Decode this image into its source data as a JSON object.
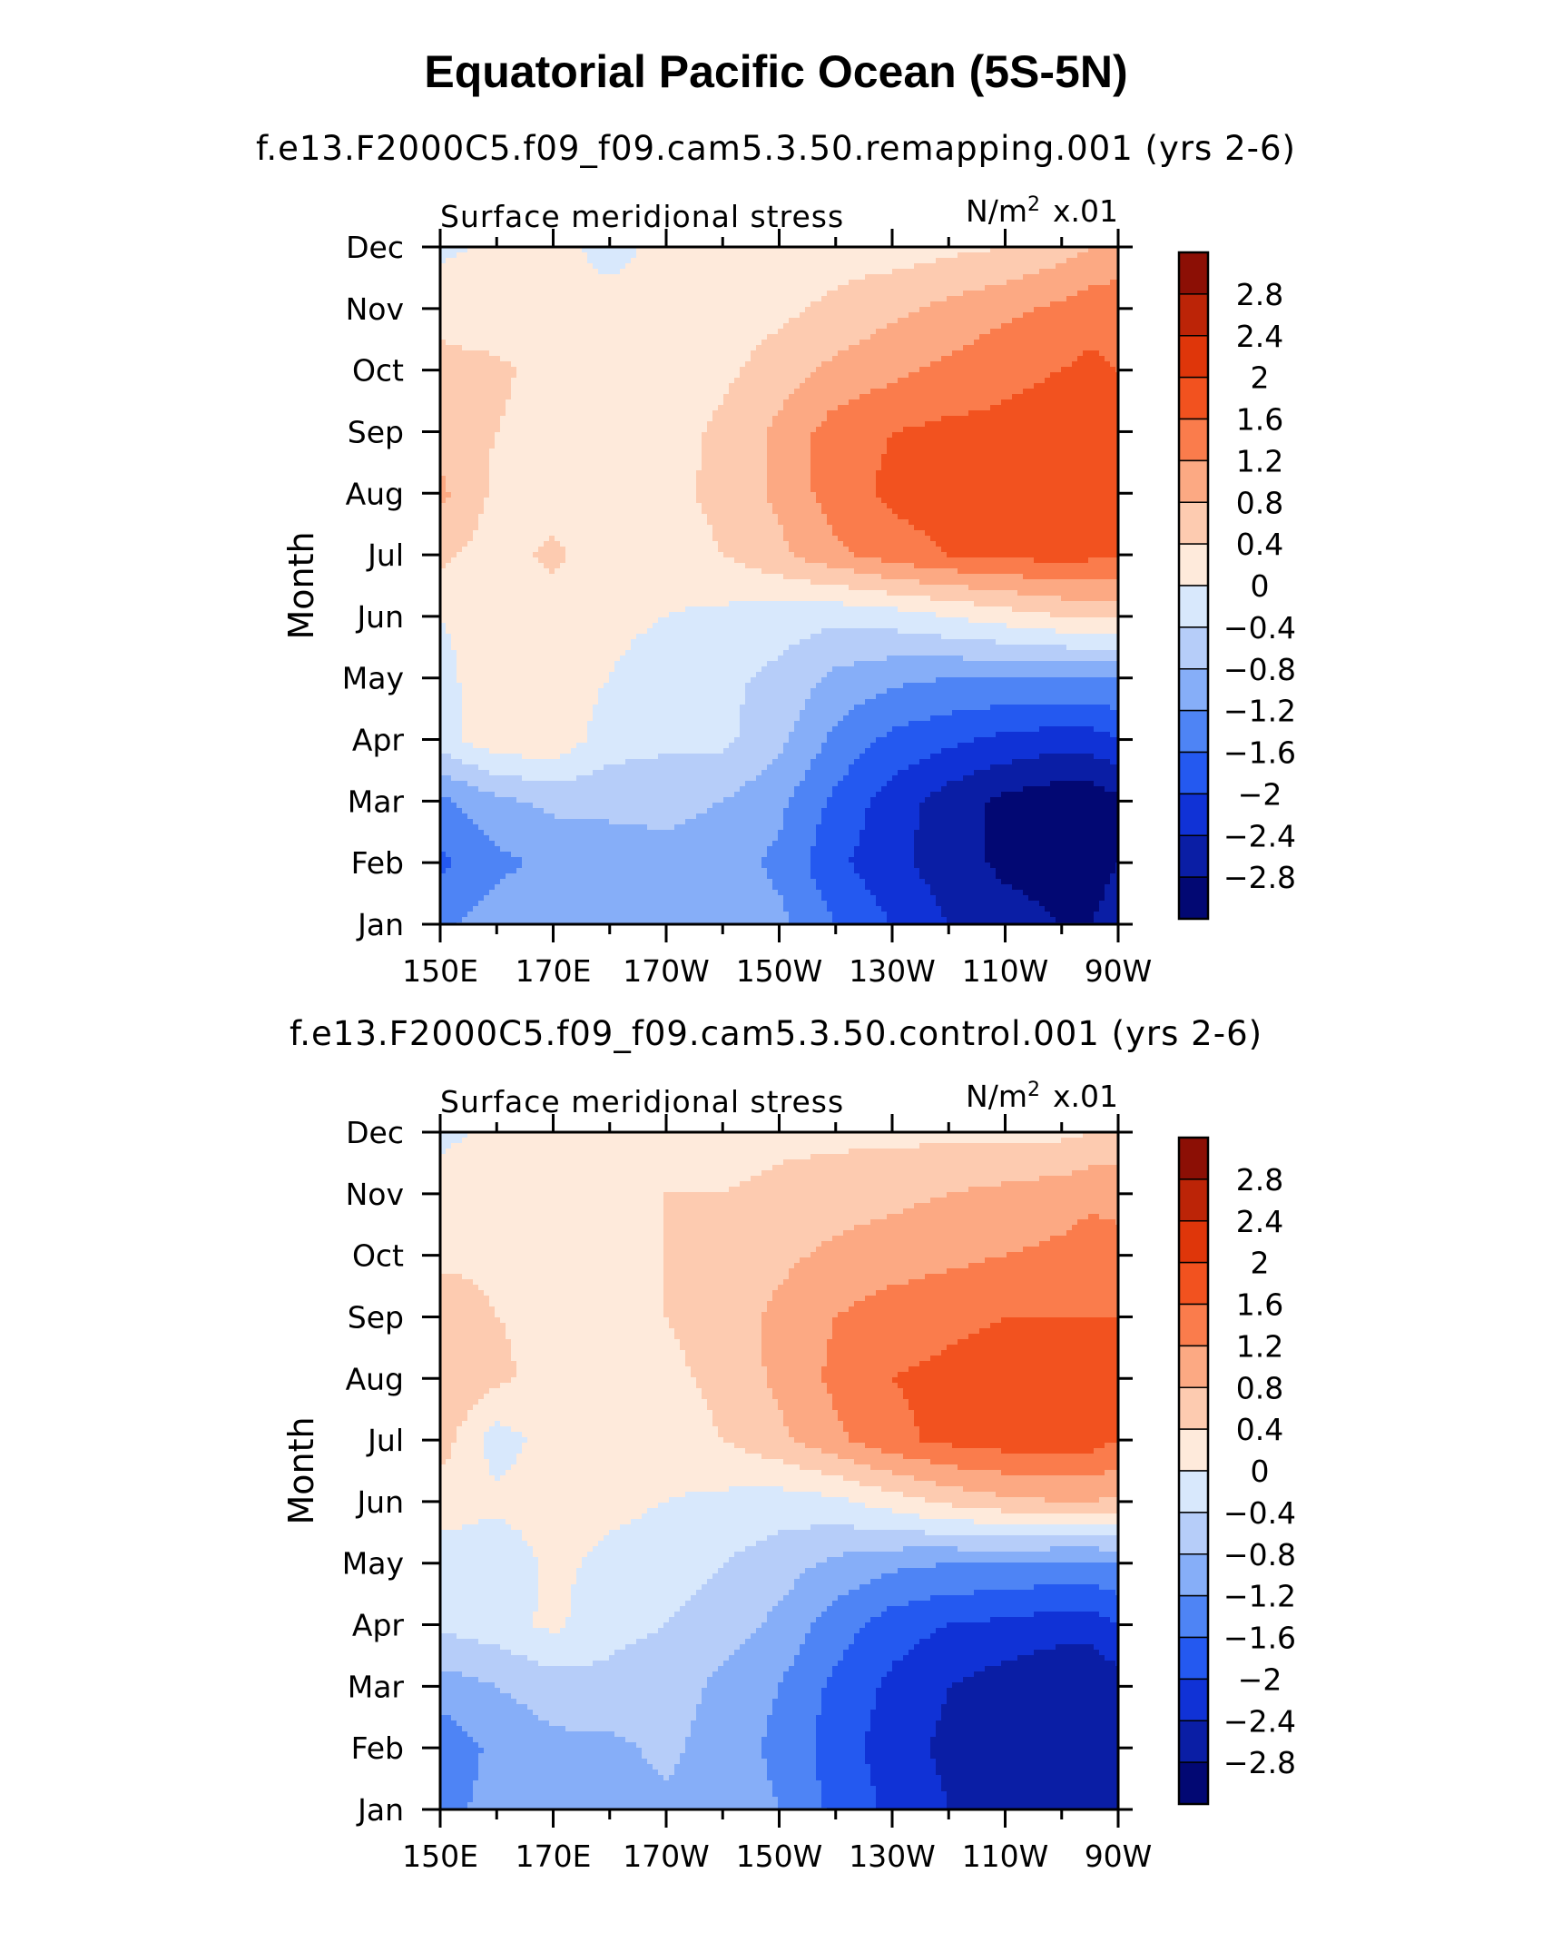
{
  "title": "Equatorial Pacific Ocean (5S-5N)",
  "colors": {
    "levels": [
      -2.8,
      -2.4,
      -2.0,
      -1.6,
      -1.2,
      -0.8,
      -0.4,
      0,
      0.4,
      0.8,
      1.2,
      1.6,
      2.0,
      2.4,
      2.8
    ],
    "fills": [
      "#020873",
      "#0a1ea5",
      "#1032d6",
      "#2459f0",
      "#4e84f5",
      "#86aef8",
      "#b6cdf9",
      "#d8e8fc",
      "#feeadb",
      "#fdcbb0",
      "#fca983",
      "#fa7c4c",
      "#f2521f",
      "#df360a",
      "#bc2407",
      "#8c0f05"
    ]
  },
  "chart_data": [
    {
      "type": "heatmap",
      "case_title": "f.e13.F2000C5.f09_f09.cam5.3.50.remapping.001 (yrs 2-6)",
      "left_label": "Surface meridional stress",
      "right_label_unit": "N/m",
      "right_label_exp": "2",
      "right_label_scale": "x.01",
      "ylabel": "Month",
      "y_ticks": [
        "Jan",
        "Feb",
        "Mar",
        "Apr",
        "May",
        "Jun",
        "Jul",
        "Aug",
        "Sep",
        "Oct",
        "Nov",
        "Dec"
      ],
      "x_ticks": [
        "150E",
        "170E",
        "170W",
        "150W",
        "130W",
        "110W",
        "90W"
      ],
      "x_tick_lon": [
        150,
        170,
        190,
        210,
        230,
        250,
        270
      ],
      "xlim": [
        150,
        270
      ],
      "ylim": [
        1,
        12
      ],
      "colorbar_labels": [
        "2.8",
        "2.4",
        "2",
        "1.6",
        "1.2",
        "0.8",
        "0.4",
        "0",
        "−0.4",
        "−0.8",
        "−1.2",
        "−1.6",
        "−2",
        "−2.4",
        "−2.8"
      ],
      "lon": [
        150,
        160,
        170,
        180,
        190,
        200,
        210,
        220,
        230,
        240,
        250,
        260,
        265,
        270
      ],
      "months": [
        1,
        2,
        3,
        4,
        5,
        6,
        7,
        8,
        9,
        10,
        11,
        12
      ],
      "values": [
        [
          -1.3,
          -1.0,
          -0.9,
          -0.9,
          -0.9,
          -0.9,
          -1.1,
          -1.6,
          -2.0,
          -2.4,
          -2.6,
          -2.8,
          -2.8,
          -2.6
        ],
        [
          -1.7,
          -1.3,
          -1.1,
          -1.0,
          -0.9,
          -1.0,
          -1.3,
          -1.9,
          -2.3,
          -2.6,
          -2.9,
          -3.0,
          -3.0,
          -2.8
        ],
        [
          -1.3,
          -0.9,
          -0.7,
          -0.7,
          -0.7,
          -0.8,
          -1.1,
          -1.7,
          -2.2,
          -2.6,
          -2.9,
          -3.1,
          -3.1,
          -2.9
        ],
        [
          -0.2,
          0.3,
          0.3,
          -0.2,
          -0.3,
          -0.3,
          -0.7,
          -1.3,
          -1.7,
          -1.9,
          -2.1,
          -2.2,
          -2.2,
          -2.0
        ],
        [
          -0.1,
          0.2,
          0.2,
          0.0,
          -0.2,
          -0.3,
          -0.5,
          -0.9,
          -1.1,
          -1.2,
          -1.2,
          -1.2,
          -1.2,
          -1.2
        ],
        [
          0.0,
          0.15,
          0.2,
          0.1,
          0.0,
          -0.1,
          -0.2,
          -0.3,
          -0.2,
          0.0,
          0.2,
          0.4,
          0.5,
          0.5
        ],
        [
          0.5,
          0.2,
          0.5,
          0.1,
          0.2,
          0.4,
          0.7,
          1.1,
          1.4,
          1.6,
          1.7,
          1.75,
          1.7,
          1.6
        ],
        [
          0.9,
          0.3,
          0.2,
          0.2,
          0.3,
          0.5,
          0.9,
          1.4,
          1.7,
          1.8,
          1.8,
          1.8,
          1.8,
          1.7
        ],
        [
          0.6,
          0.4,
          0.2,
          0.1,
          0.2,
          0.5,
          0.9,
          1.4,
          1.6,
          1.7,
          1.7,
          1.8,
          1.8,
          1.7
        ],
        [
          0.5,
          0.5,
          0.2,
          0.1,
          0.1,
          0.3,
          0.6,
          0.9,
          1.1,
          1.3,
          1.5,
          1.6,
          1.7,
          1.6
        ],
        [
          0.3,
          0.1,
          0.1,
          0.1,
          0.1,
          0.2,
          0.3,
          0.5,
          0.7,
          0.9,
          1.1,
          1.3,
          1.4,
          1.4
        ],
        [
          -0.1,
          0.1,
          0.1,
          -0.1,
          0.1,
          0.1,
          0.1,
          0.2,
          0.2,
          0.3,
          0.4,
          0.6,
          0.8,
          1.0
        ]
      ]
    },
    {
      "type": "heatmap",
      "case_title": "f.e13.F2000C5.f09_f09.cam5.3.50.control.001 (yrs 2-6)",
      "left_label": "Surface meridional stress",
      "right_label_unit": "N/m",
      "right_label_exp": "2",
      "right_label_scale": "x.01",
      "ylabel": "Month",
      "y_ticks": [
        "Jan",
        "Feb",
        "Mar",
        "Apr",
        "May",
        "Jun",
        "Jul",
        "Aug",
        "Sep",
        "Oct",
        "Nov",
        "Dec"
      ],
      "x_ticks": [
        "150E",
        "170E",
        "170W",
        "150W",
        "130W",
        "110W",
        "90W"
      ],
      "x_tick_lon": [
        150,
        170,
        190,
        210,
        230,
        250,
        270
      ],
      "xlim": [
        150,
        270
      ],
      "ylim": [
        1,
        12
      ],
      "colorbar_labels": [
        "2.8",
        "2.4",
        "2",
        "1.6",
        "1.2",
        "0.8",
        "0.4",
        "0",
        "−0.4",
        "−0.8",
        "−1.2",
        "−1.6",
        "−2",
        "−2.4",
        "−2.8"
      ],
      "lon": [
        150,
        160,
        170,
        180,
        190,
        200,
        210,
        220,
        230,
        240,
        250,
        260,
        265,
        270
      ],
      "months": [
        1,
        2,
        3,
        4,
        5,
        6,
        7,
        8,
        9,
        10,
        11,
        12
      ],
      "values": [
        [
          -1.4,
          -1.0,
          -0.9,
          -0.9,
          -0.9,
          -0.9,
          -1.2,
          -1.7,
          -2.1,
          -2.4,
          -2.6,
          -2.7,
          -2.7,
          -2.5
        ],
        [
          -1.5,
          -1.1,
          -0.9,
          -0.9,
          -0.7,
          -1.0,
          -1.3,
          -1.8,
          -2.2,
          -2.5,
          -2.7,
          -2.8,
          -2.8,
          -2.6
        ],
        [
          -1.0,
          -0.8,
          -0.6,
          -0.5,
          -0.6,
          -0.9,
          -1.2,
          -1.7,
          -2.1,
          -2.4,
          -2.6,
          -2.8,
          -2.8,
          -2.6
        ],
        [
          -0.3,
          -0.2,
          0.1,
          -0.3,
          -0.4,
          -0.6,
          -0.9,
          -1.4,
          -1.8,
          -2.0,
          -2.1,
          -2.2,
          -2.2,
          -2.0
        ],
        [
          -0.2,
          -0.3,
          0.1,
          -0.1,
          -0.2,
          -0.4,
          -0.6,
          -0.9,
          -1.1,
          -1.2,
          -1.2,
          -1.3,
          -1.3,
          -1.2
        ],
        [
          0.2,
          0.1,
          0.2,
          0.1,
          0.0,
          -0.1,
          -0.2,
          -0.1,
          0.2,
          0.5,
          0.7,
          0.8,
          0.8,
          0.7
        ],
        [
          0.6,
          -0.2,
          0.2,
          0.2,
          0.2,
          0.4,
          0.7,
          1.1,
          1.5,
          1.7,
          1.8,
          1.8,
          1.8,
          1.6
        ],
        [
          0.8,
          0.5,
          0.2,
          0.2,
          0.3,
          0.5,
          0.9,
          1.3,
          1.6,
          1.7,
          1.8,
          1.8,
          2.0,
          1.8
        ],
        [
          0.7,
          0.4,
          0.3,
          0.2,
          0.4,
          0.6,
          0.9,
          1.2,
          1.4,
          1.5,
          1.6,
          1.6,
          1.6,
          1.6
        ],
        [
          0.3,
          0.3,
          0.2,
          0.1,
          0.4,
          0.5,
          0.7,
          0.9,
          1.0,
          1.1,
          1.2,
          1.3,
          1.4,
          1.3
        ],
        [
          0.2,
          0.2,
          0.1,
          0.1,
          0.4,
          0.4,
          0.5,
          0.6,
          0.7,
          0.8,
          0.9,
          1.0,
          1.1,
          1.1
        ],
        [
          -0.1,
          0.1,
          0.1,
          0.1,
          0.2,
          0.2,
          0.3,
          0.3,
          0.3,
          0.3,
          0.3,
          0.3,
          0.4,
          0.5
        ]
      ]
    }
  ]
}
